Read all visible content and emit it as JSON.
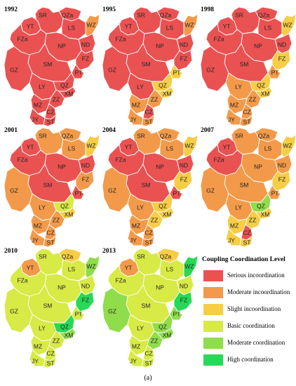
{
  "legend": {
    "title": "Coupling Coordination Level",
    "items": [
      {
        "label": "Serious incoordination",
        "color": "#ea5252"
      },
      {
        "label": "Moderate incoordination",
        "color": "#f39a4a"
      },
      {
        "label": "Slight incoordination",
        "color": "#f6cd45"
      },
      {
        "label": "Basic coordination",
        "color": "#d7ea45"
      },
      {
        "label": "Moderate coordination",
        "color": "#8fdd4a"
      },
      {
        "label": "High coordination",
        "color": "#27d956"
      }
    ]
  },
  "caption": "(a)",
  "region_codes": [
    "SR",
    "QZa",
    "LS",
    "WZ",
    "YT",
    "ND",
    "FZa",
    "NP",
    "SM",
    "FZ",
    "PT",
    "GZ",
    "LY",
    "QZ",
    "XM",
    "ZZ",
    "MZ",
    "CZ",
    "JY",
    "ST"
  ],
  "maps": [
    {
      "year": "1992",
      "levels": {
        "SR": 0,
        "QZa": 0,
        "LS": 0,
        "WZ": 1,
        "YT": 0,
        "ND": 0,
        "FZa": 0,
        "NP": 0,
        "SM": 0,
        "FZ": 0,
        "PT": 0,
        "GZ": 0,
        "LY": 0,
        "QZ": 0,
        "XM": 0,
        "ZZ": 0,
        "MZ": 0,
        "CZ": 0,
        "JY": 0,
        "ST": 0
      }
    },
    {
      "year": "1995",
      "levels": {
        "SR": 0,
        "QZa": 0,
        "LS": 0,
        "WZ": 1,
        "YT": 0,
        "ND": 0,
        "FZa": 0,
        "NP": 0,
        "SM": 0,
        "FZ": 0,
        "PT": 2,
        "GZ": 0,
        "LY": 0,
        "QZ": 2,
        "XM": 2,
        "ZZ": 1,
        "MZ": 1,
        "CZ": 0,
        "JY": 1,
        "ST": 1
      }
    },
    {
      "year": "1998",
      "levels": {
        "SR": 0,
        "QZa": 0,
        "LS": 0,
        "WZ": 2,
        "YT": 0,
        "ND": 0,
        "FZa": 0,
        "NP": 0,
        "SM": 0,
        "FZ": 2,
        "PT": 1,
        "GZ": 0,
        "LY": 1,
        "QZ": 2,
        "XM": 2,
        "ZZ": 1,
        "MZ": 1,
        "CZ": 1,
        "JY": 1,
        "ST": 1
      }
    },
    {
      "year": "2001",
      "levels": {
        "SR": 1,
        "QZa": 1,
        "LS": 1,
        "WZ": 2,
        "YT": 0,
        "ND": 0,
        "FZa": 0,
        "NP": 0,
        "SM": 0,
        "FZ": 1,
        "PT": 0,
        "GZ": 1,
        "LY": 1,
        "QZ": 3,
        "XM": 2,
        "ZZ": 1,
        "MZ": 1,
        "CZ": 1,
        "JY": 1,
        "ST": 1
      }
    },
    {
      "year": "2004",
      "levels": {
        "SR": 1,
        "QZa": 1,
        "LS": 1,
        "WZ": 2,
        "YT": 0,
        "ND": 0,
        "FZa": 0,
        "NP": 0,
        "SM": 0,
        "FZ": 2,
        "PT": 0,
        "GZ": 1,
        "LY": 1,
        "QZ": 2,
        "XM": 2,
        "ZZ": 2,
        "MZ": 1,
        "CZ": 1,
        "JY": 1,
        "ST": 1
      }
    },
    {
      "year": "2007",
      "levels": {
        "SR": 1,
        "QZa": 1,
        "LS": 1,
        "WZ": 2,
        "YT": 0,
        "ND": 1,
        "FZa": 0,
        "NP": 1,
        "SM": 1,
        "FZ": 2,
        "PT": 1,
        "GZ": 1,
        "LY": 1,
        "QZ": 4,
        "XM": 2,
        "ZZ": 2,
        "MZ": 2,
        "CZ": 0,
        "JY": 2,
        "ST": 2
      }
    },
    {
      "year": "2010",
      "levels": {
        "SR": 3,
        "QZa": 2,
        "LS": 3,
        "WZ": 4,
        "YT": 1,
        "ND": 3,
        "FZa": 3,
        "NP": 3,
        "SM": 3,
        "FZ": 5,
        "PT": 3,
        "GZ": 3,
        "LY": 3,
        "QZ": 5,
        "XM": 4,
        "ZZ": 3,
        "MZ": 3,
        "CZ": 3,
        "JY": 3,
        "ST": 3
      }
    },
    {
      "year": "2013",
      "levels": {
        "SR": 3,
        "QZa": 2,
        "LS": 3,
        "WZ": 5,
        "YT": 1,
        "ND": 3,
        "FZa": 3,
        "NP": 3,
        "SM": 3,
        "FZ": 5,
        "PT": 4,
        "GZ": 4,
        "LY": 3,
        "QZ": 4,
        "XM": 4,
        "ZZ": 4,
        "MZ": 3,
        "CZ": 3,
        "JY": 3,
        "ST": 3
      }
    }
  ]
}
